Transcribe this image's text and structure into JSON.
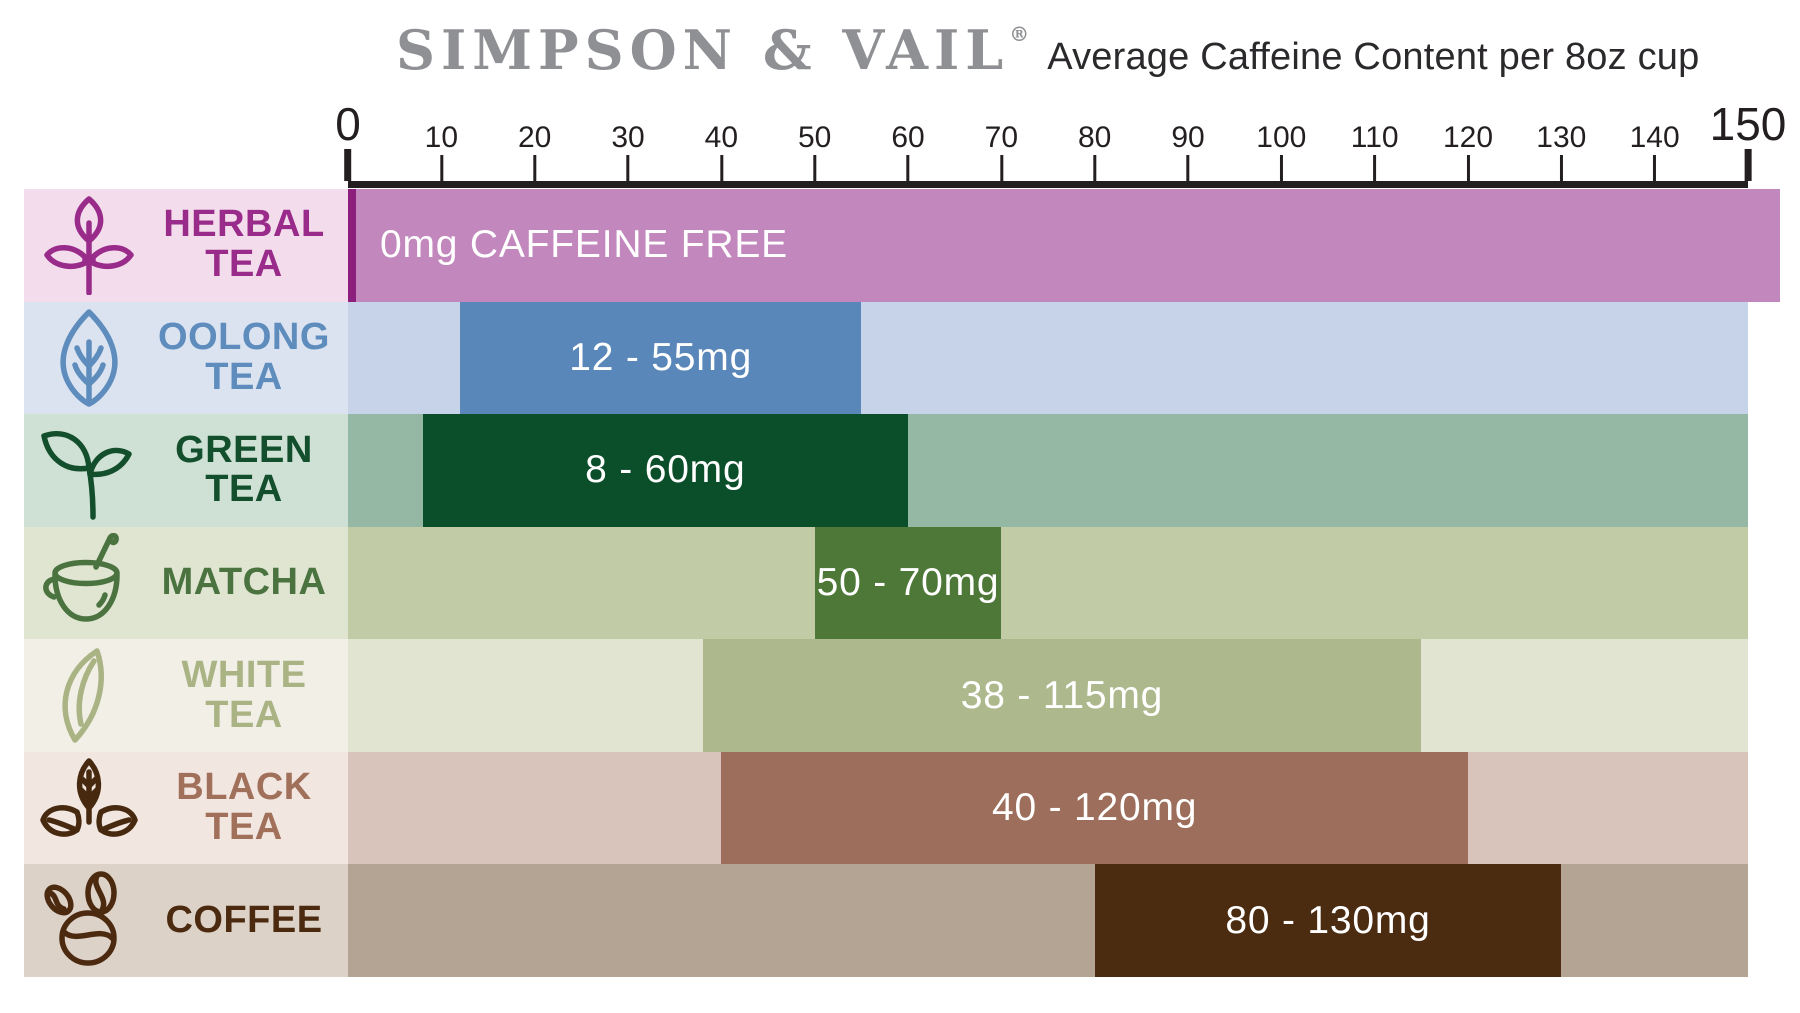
{
  "header": {
    "brand": "SIMPSON & VAIL",
    "registered_mark": "®",
    "subtitle": "Average Caffeine Content per 8oz cup",
    "brand_color": "#8f9093",
    "subtitle_color": "#2b292c"
  },
  "chart_data": {
    "type": "bar",
    "orientation": "horizontal-range",
    "title": "Average Caffeine Content per 8oz cup",
    "unit": "mg",
    "x_axis": {
      "min": 0,
      "max": 150,
      "tick_step": 10,
      "ticks": [
        0,
        10,
        20,
        30,
        40,
        50,
        60,
        70,
        80,
        90,
        100,
        110,
        120,
        130,
        140,
        150
      ],
      "emphasized_ticks": [
        0,
        150
      ],
      "color": "#231f20",
      "grid": false
    },
    "rows": [
      {
        "category": "HERBAL TEA",
        "label_lines": [
          "HERBAL",
          "TEA"
        ],
        "icon": "herbal-tea-sprig-icon",
        "range_mg": [
          0,
          0
        ],
        "bar_span": [
          0,
          150
        ],
        "bar_label": "0mg CAFFEINE FREE",
        "bar_label_align": "left",
        "colors": {
          "label_bg": "#f3ddec",
          "label_text": "#992b8a",
          "icon": "#992b8a",
          "track": "#c287bc",
          "bar": "#c287bc",
          "accent_line": "#8c1f7e"
        }
      },
      {
        "category": "OOLONG TEA",
        "label_lines": [
          "OOLONG",
          "TEA"
        ],
        "icon": "oolong-leaf-icon",
        "range_mg": [
          12,
          55
        ],
        "bar_span": [
          12,
          55
        ],
        "bar_label": "12 - 55mg",
        "colors": {
          "label_bg": "#dbe3f0",
          "label_text": "#5d8cbd",
          "icon": "#5d8cbd",
          "track": "#c6d3e9",
          "bar": "#5a87b9"
        }
      },
      {
        "category": "GREEN TEA",
        "label_lines": [
          "GREEN",
          "TEA"
        ],
        "icon": "green-tea-sprout-icon",
        "range_mg": [
          8,
          60
        ],
        "bar_span": [
          8,
          60
        ],
        "bar_label": "8 - 60mg",
        "colors": {
          "label_bg": "#cfe0d4",
          "label_text": "#134f2c",
          "icon": "#134f2c",
          "track": "#95b8a5",
          "bar": "#0b4e2a"
        }
      },
      {
        "category": "MATCHA",
        "label_lines": [
          "MATCHA"
        ],
        "icon": "matcha-cup-icon",
        "range_mg": [
          50,
          70
        ],
        "bar_span": [
          50,
          70
        ],
        "bar_label": "50 - 70mg",
        "colors": {
          "label_bg": "#dfe5d1",
          "label_text": "#4a7340",
          "icon": "#4a7340",
          "track": "#c1cba6",
          "bar": "#4d7837"
        }
      },
      {
        "category": "WHITE TEA",
        "label_lines": [
          "WHITE",
          "TEA"
        ],
        "icon": "white-tea-leaf-icon",
        "range_mg": [
          38,
          115
        ],
        "bar_span": [
          38,
          115
        ],
        "bar_label": "38 - 115mg",
        "colors": {
          "label_bg": "#f1efe6",
          "label_text": "#a9b383",
          "icon": "#a9b383",
          "track": "#e2e4d2",
          "bar": "#adb88c"
        }
      },
      {
        "category": "BLACK TEA",
        "label_lines": [
          "BLACK",
          "TEA"
        ],
        "icon": "black-tea-leaves-icon",
        "range_mg": [
          40,
          120
        ],
        "bar_span": [
          40,
          120
        ],
        "bar_label": "40 - 120mg",
        "colors": {
          "label_bg": "#f1e6e0",
          "label_text": "#a1705b",
          "icon": "#47290f",
          "track": "#d8c4bb",
          "bar": "#9c6e5b"
        }
      },
      {
        "category": "COFFEE",
        "label_lines": [
          "COFFEE"
        ],
        "icon": "coffee-beans-icon",
        "range_mg": [
          80,
          130
        ],
        "bar_span": [
          80,
          130
        ],
        "bar_label": "80 - 130mg",
        "colors": {
          "label_bg": "#ddd2c8",
          "label_text": "#4b2a0f",
          "icon": "#4b2a0f",
          "track": "#b4a494",
          "bar": "#4b2c11"
        }
      }
    ]
  }
}
